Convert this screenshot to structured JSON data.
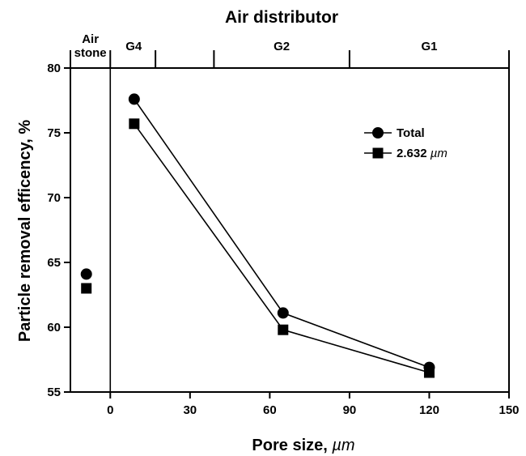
{
  "chart_data": {
    "type": "line",
    "title": "Air distributor",
    "xlabel": "Pore size,",
    "xlabel_unit": "µm",
    "ylabel": "Particle removal efficency, %",
    "xlim": [
      -15,
      150
    ],
    "ylim": [
      55,
      80
    ],
    "x_ticks": [
      0,
      30,
      60,
      90,
      120,
      150
    ],
    "y_ticks": [
      55,
      60,
      65,
      70,
      75,
      80
    ],
    "grid": false,
    "legend_position": "top-right",
    "distributor_bands": [
      {
        "label": "Air stone",
        "label_lines": [
          "Air",
          "stone"
        ],
        "from": -15,
        "to": 0
      },
      {
        "label": "G4",
        "from": 0,
        "to": 17
      },
      {
        "label": "",
        "from": 17,
        "to": 39
      },
      {
        "label": "G2",
        "from": 39,
        "to": 90
      },
      {
        "label": "G1",
        "from": 90,
        "to": 150
      }
    ],
    "series": [
      {
        "name": "Total",
        "name_unit": "",
        "marker": "circle",
        "air_stone": {
          "x": -9,
          "y": 64.1
        },
        "points": [
          {
            "x": 9,
            "y": 77.6
          },
          {
            "x": 65,
            "y": 61.1
          },
          {
            "x": 120,
            "y": 56.9
          }
        ]
      },
      {
        "name": "2.632",
        "name_unit": "µm",
        "marker": "square",
        "air_stone": {
          "x": -9,
          "y": 63.0
        },
        "points": [
          {
            "x": 9,
            "y": 75.7
          },
          {
            "x": 65,
            "y": 59.8
          },
          {
            "x": 120,
            "y": 56.5
          }
        ]
      }
    ]
  }
}
